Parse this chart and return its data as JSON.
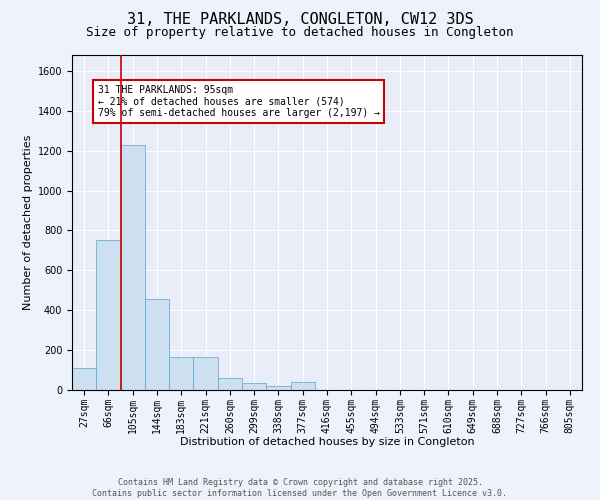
{
  "title": "31, THE PARKLANDS, CONGLETON, CW12 3DS",
  "subtitle": "Size of property relative to detached houses in Congleton",
  "xlabel": "Distribution of detached houses by size in Congleton",
  "ylabel": "Number of detached properties",
  "categories": [
    "27sqm",
    "66sqm",
    "105sqm",
    "144sqm",
    "183sqm",
    "221sqm",
    "260sqm",
    "299sqm",
    "338sqm",
    "377sqm",
    "416sqm",
    "455sqm",
    "494sqm",
    "533sqm",
    "571sqm",
    "610sqm",
    "649sqm",
    "688sqm",
    "727sqm",
    "766sqm",
    "805sqm"
  ],
  "bar_values": [
    110,
    750,
    1230,
    455,
    165,
    165,
    60,
    35,
    20,
    40,
    0,
    0,
    0,
    0,
    0,
    0,
    0,
    0,
    0,
    0,
    0
  ],
  "bar_color": "#cce0f0",
  "bar_edge_color": "#5ba3d0",
  "vline_color": "#cc0000",
  "annotation_text": "31 THE PARKLANDS: 95sqm\n← 21% of detached houses are smaller (574)\n79% of semi-detached houses are larger (2,197) →",
  "annotation_box_color": "#ffffff",
  "annotation_border_color": "#cc0000",
  "ylim": [
    0,
    1680
  ],
  "yticks": [
    0,
    200,
    400,
    600,
    800,
    1000,
    1200,
    1400,
    1600
  ],
  "bg_color": "#eef2fb",
  "plot_bg_color": "#e8edf8",
  "footer_text": "Contains HM Land Registry data © Crown copyright and database right 2025.\nContains public sector information licensed under the Open Government Licence v3.0.",
  "title_fontsize": 11,
  "subtitle_fontsize": 9,
  "axis_label_fontsize": 8,
  "tick_fontsize": 7,
  "annotation_fontsize": 7,
  "footer_fontsize": 6
}
